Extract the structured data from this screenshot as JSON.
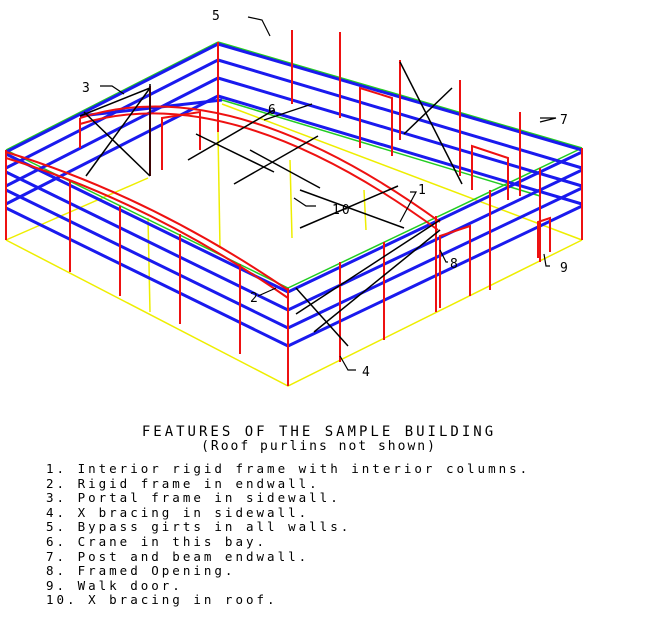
{
  "caption": {
    "title": "FEATURES OF THE SAMPLE BUILDING",
    "subtitle": "(Roof purlins not shown)",
    "items": [
      "1. Interior rigid frame with interior columns.",
      "2. Rigid frame in endwall.",
      "3. Portal frame in sidewall.",
      "4. X bracing in sidewall.",
      "5. Bypass girts in all walls.",
      "6. Crane in this bay.",
      "7. Post and beam endwall.",
      "8. Framed Opening.",
      "9. Walk door.",
      "10. X bracing in roof."
    ]
  },
  "callouts": [
    "1",
    "2",
    "3",
    "4",
    "5",
    "6",
    "7",
    "8",
    "9",
    "10"
  ],
  "colors": {
    "girts": "#1a1aee",
    "frames": "#ee1111",
    "eave": "#22cc22",
    "base": "#eeee00",
    "bracing": "#000000"
  }
}
